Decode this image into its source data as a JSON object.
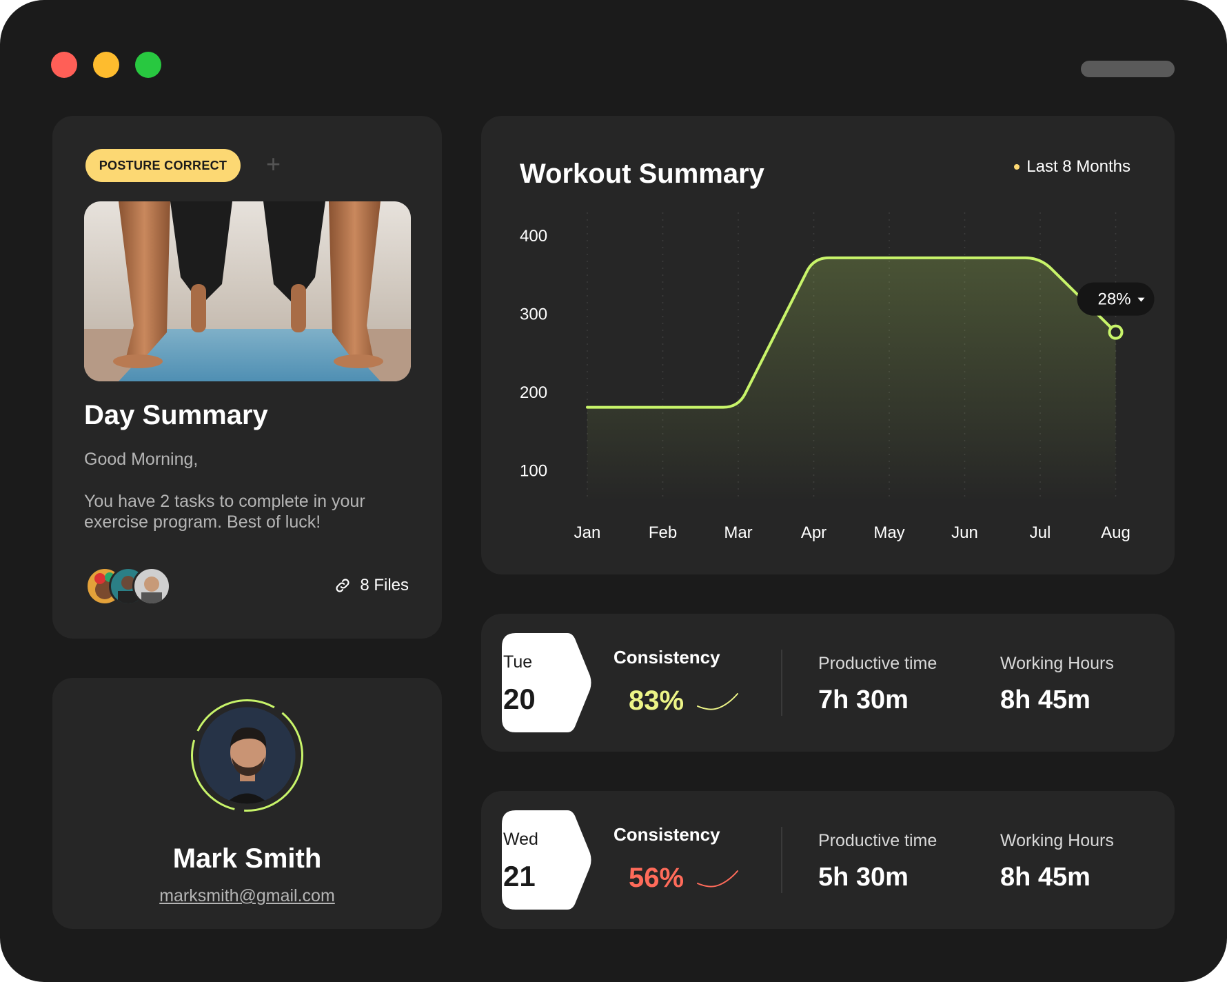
{
  "colors": {
    "window_bg": "#1b1b1b",
    "card_bg": "#262626",
    "accent_green": "#c8f46a",
    "accent_yellow": "#fcd873",
    "consistency_good": "#ecf487",
    "consistency_bad": "#ff6b5a"
  },
  "window": {
    "controls": [
      "close",
      "minimize",
      "maximize"
    ]
  },
  "day_summary": {
    "badge": "POSTURE CORRECT",
    "add_icon": "plus-icon",
    "image": "push-up-on-yoga-mat-photo",
    "title": "Day Summary",
    "greeting": "Good Morning,",
    "message": "You have 2 tasks to complete in your exercise program. Best of luck!",
    "files_icon": "link-icon",
    "files_label": "8 Files",
    "avatar_count": 3
  },
  "profile": {
    "name": "Mark Smith",
    "email": "marksmith@gmail.com"
  },
  "workout": {
    "title": "Workout Summary",
    "period": "Last 8 Months",
    "tooltip_value": "28%",
    "tooltip_icon": "caret-down-icon"
  },
  "chart_data": {
    "type": "line",
    "categories": [
      "Jan",
      "Feb",
      "Mar",
      "Apr",
      "May",
      "Jun",
      "Jul",
      "Aug"
    ],
    "series": [
      {
        "values": [
          181,
          181,
          181,
          372,
          372,
          372,
          372,
          277
        ]
      }
    ],
    "yticks": [
      400,
      300,
      200,
      100
    ],
    "ylim": [
      60,
      430
    ],
    "grid": "vertical dotted",
    "highlight": {
      "category": "Aug",
      "label": "28%"
    }
  },
  "stats": [
    {
      "weekday": "Tue",
      "day": "20",
      "consistency_label": "Consistency",
      "consistency_value": "83%",
      "productive_label": "Productive time",
      "productive_value": "7h 30m",
      "working_label": "Working Hours",
      "working_value": "8h 45m"
    },
    {
      "weekday": "Wed",
      "day": "21",
      "consistency_label": "Consistency",
      "consistency_value": "56%",
      "productive_label": "Productive time",
      "productive_value": "5h 30m",
      "working_label": "Working Hours",
      "working_value": "8h 45m"
    }
  ]
}
